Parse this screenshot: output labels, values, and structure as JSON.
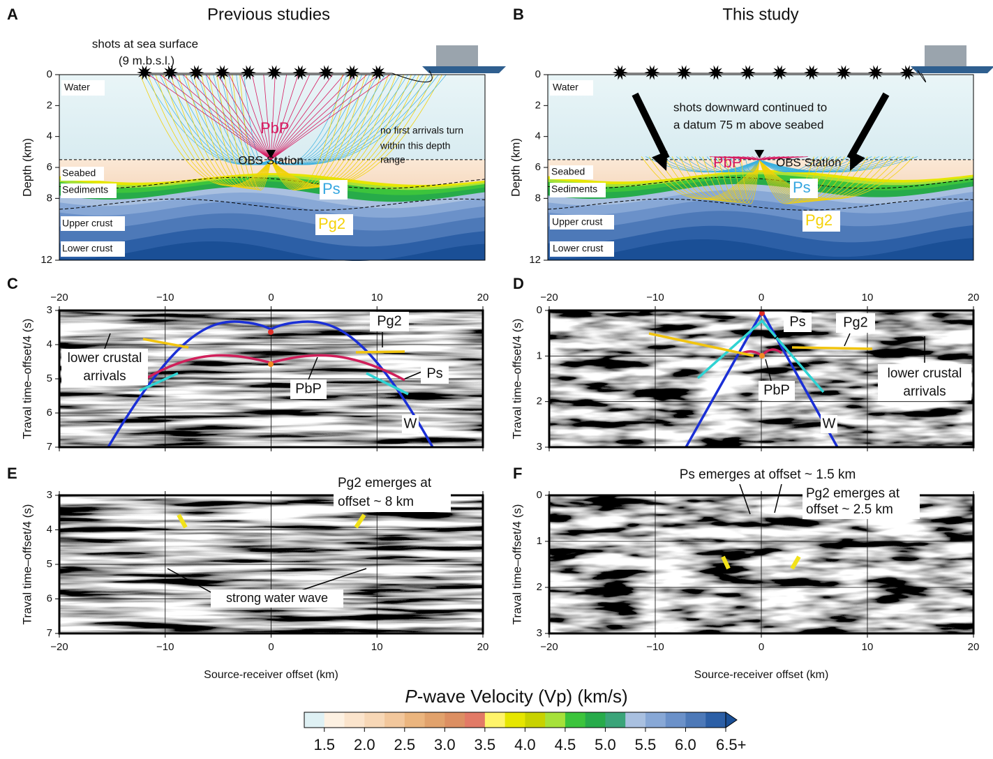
{
  "panels": [
    {
      "letter": "A",
      "title": "Previous studies",
      "ylabel": "Depth (km)",
      "ylim": [
        0,
        12
      ],
      "yticks": [
        0,
        2,
        4,
        6,
        8,
        12
      ],
      "annotations": [
        "shots at sea surface",
        "(9 m.b.s.l.)",
        "Water",
        "Seabed",
        "Sediments",
        "Upper crust",
        "Lower crust",
        "PbP",
        "OBS Station",
        "Ps",
        "Pg2",
        "no first arrivals turn",
        "within this depth",
        "range"
      ]
    },
    {
      "letter": "B",
      "title": "This study",
      "ylabel": "Depth (km)",
      "ylim": [
        0,
        12
      ],
      "yticks": [
        0,
        2,
        4,
        6,
        8,
        12
      ],
      "annotations": [
        "Water",
        "Seabed",
        "Sediments",
        "Upper crust",
        "Lower crust",
        "shots downward continued to",
        "a datum 75 m above seabed",
        "PbP",
        "OBS Station",
        "Ps",
        "Pg2"
      ]
    },
    {
      "letter": "C",
      "ylabel": "Traval time–offset/4 (s)",
      "xlim": [
        -20,
        20
      ],
      "xticks": [
        {
          "value": -20,
          "label": "−20"
        },
        {
          "value": -10,
          "label": "−10"
        },
        0,
        10,
        20
      ],
      "ylim": [
        3,
        7
      ],
      "yticks": [
        3,
        4,
        5,
        6,
        7
      ],
      "y_reversed": true,
      "grid": true,
      "annotations": [
        "lower crustal",
        "arrivals",
        "Pg2",
        "Ps",
        "PbP",
        "W"
      ]
    },
    {
      "letter": "D",
      "ylabel": "Traval time–offset/4 (s)",
      "xlim": [
        -20,
        20
      ],
      "xticks": [
        {
          "value": -20,
          "label": "−20"
        },
        {
          "value": -10,
          "label": "−10"
        },
        0,
        10,
        20
      ],
      "ylim": [
        0,
        3
      ],
      "yticks": [
        0,
        1,
        2,
        3
      ],
      "y_reversed": true,
      "grid": true,
      "annotations": [
        "Ps",
        "Pg2",
        "PbP",
        "W",
        "lower crustal",
        "arrivals"
      ]
    },
    {
      "letter": "E",
      "ylabel": "Traval time–offset/4 (s)",
      "xlabel": "Source-receiver offset (km)",
      "xlim": [
        -20,
        20
      ],
      "xticks": [
        {
          "value": -20,
          "label": "−20"
        },
        {
          "value": -10,
          "label": "−10"
        },
        0,
        10,
        20
      ],
      "ylim": [
        3,
        7
      ],
      "yticks": [
        3,
        4,
        5,
        6,
        7
      ],
      "y_reversed": true,
      "grid": true,
      "annotations": [
        "Pg2 emerges at",
        "offset ~ 8 km",
        "strong water wave"
      ]
    },
    {
      "letter": "F",
      "ylabel": "Traval time–offset/4 (s)",
      "xlabel": "Source-receiver offset (km)",
      "xlim": [
        -20,
        20
      ],
      "xticks": [
        {
          "value": -20,
          "label": "−20"
        },
        {
          "value": -10,
          "label": "−10"
        },
        0,
        10,
        20
      ],
      "ylim": [
        0,
        3
      ],
      "yticks": [
        0,
        1,
        2,
        3
      ],
      "y_reversed": true,
      "grid": true,
      "annotations": [
        "Ps emerges at offset ~ 1.5 km",
        "Pg2 emerges at",
        "offset ~ 2.5 km"
      ]
    }
  ],
  "colorbar": {
    "title_italic": "P",
    "title": "-wave Velocity (Vp) (km/s)",
    "lim": [
      1.25,
      6.5
    ],
    "ticks": [
      1.5,
      {
        "value": 2,
        "label": "2.0"
      },
      2.5,
      {
        "value": 3,
        "label": "3.0"
      },
      3.5,
      {
        "value": 4,
        "label": "4.0"
      },
      4.5,
      {
        "value": 5,
        "label": "5.0"
      },
      5.5,
      {
        "value": 6,
        "label": "6.0"
      },
      {
        "value": 6.5,
        "label": "6.5+"
      }
    ],
    "colors": [
      "#dff1f4",
      "#fdf1e2",
      "#fbe4cc",
      "#f7d7b6",
      "#f2c79c",
      "#ebb57e",
      "#e1a26c",
      "#dc8f62",
      "#e27a66",
      "#fff46a",
      "#e6e600",
      "#c8d200",
      "#a6e13a",
      "#3cc43c",
      "#27ab4a",
      "#3ba479",
      "#a9c0e0",
      "#88a8d6",
      "#6b91c9",
      "#4d79b8",
      "#2c5fa6"
    ]
  }
}
